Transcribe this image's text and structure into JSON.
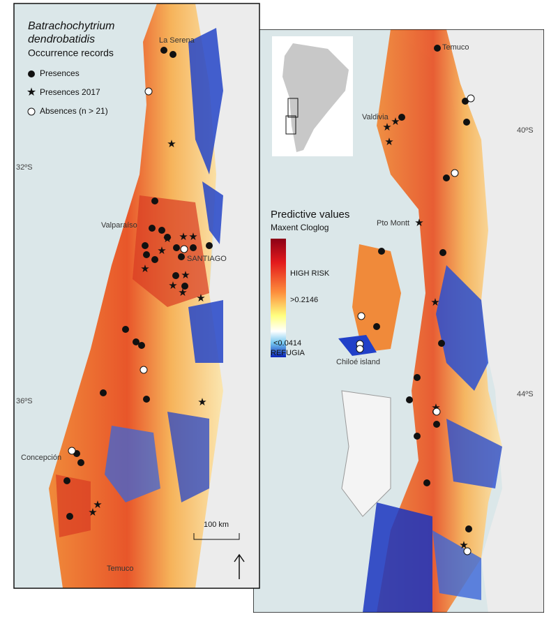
{
  "left_panel": {
    "title_line1": "Batrachochytrium",
    "title_line2": "dendrobatidis",
    "subtitle": "Occurrence records",
    "legend": [
      {
        "label": "Presences"
      },
      {
        "label": "Presences 2017"
      },
      {
        "label": "Absences (n > 21)"
      }
    ],
    "latitude_labels": [
      "32ºS",
      "36ºS"
    ],
    "places": [
      "La Serena",
      "Valparaíso",
      "SANTIAGO",
      "Concepción",
      "Temuco"
    ],
    "scale_bar": "100 km"
  },
  "right_panel": {
    "latitude_labels": [
      "40ºS",
      "44ºS"
    ],
    "places": [
      "Temuco",
      "Valdivia",
      "Pto Montt",
      "Chiloé island"
    ],
    "colorbar": {
      "title": "Predictive values",
      "subtitle": "Maxent Cloglog",
      "high": "HIGH RISK",
      "mid": ">0.2146",
      "low": "<0.0414",
      "refugia": "REFUGIA"
    }
  }
}
